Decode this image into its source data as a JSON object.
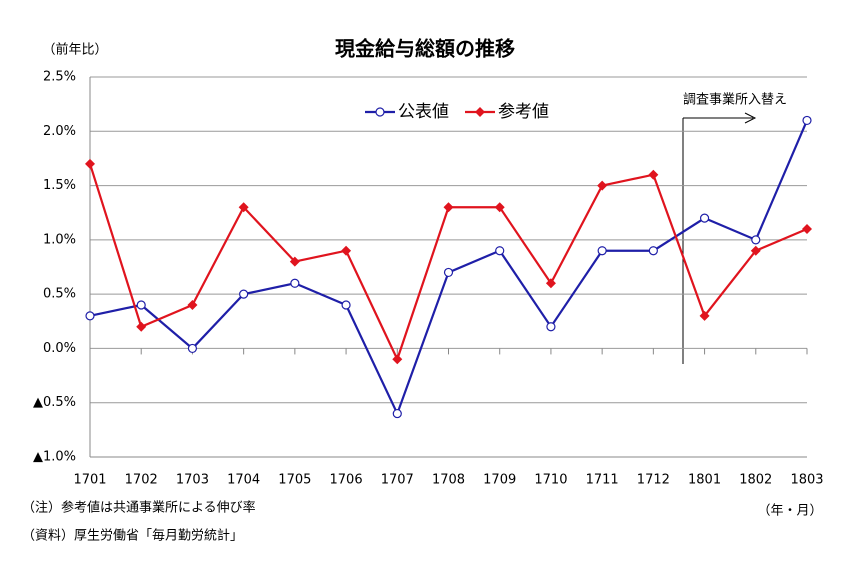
{
  "chart_data": {
    "type": "line",
    "title": "現金給与総額の推移",
    "y_label": "（前年比）",
    "x_label": "（年・月）",
    "notes": [
      "（注）参考値は共通事業所による伸び率",
      "（資料）厚生労働省「毎月勤労統計」"
    ],
    "annotation": "調査事業所入替え",
    "categories": [
      "1701",
      "1702",
      "1703",
      "1704",
      "1705",
      "1706",
      "1707",
      "1708",
      "1709",
      "1710",
      "1711",
      "1712",
      "1801",
      "1802",
      "1803"
    ],
    "series": [
      {
        "name": "公表値",
        "color": "#1f1fa8",
        "marker": "circle",
        "values": [
          0.3,
          0.4,
          0.0,
          0.5,
          0.6,
          0.4,
          -0.6,
          0.7,
          0.9,
          0.2,
          0.9,
          0.9,
          1.2,
          1.0,
          2.1
        ]
      },
      {
        "name": "参考値",
        "color": "#e0141e",
        "marker": "diamond",
        "values": [
          1.7,
          0.2,
          0.4,
          1.3,
          0.8,
          0.9,
          -0.1,
          1.3,
          1.3,
          0.6,
          1.5,
          1.6,
          0.3,
          0.9,
          1.1
        ]
      }
    ],
    "ylim": [
      -1.0,
      2.5
    ],
    "yticks": [
      {
        "value": -1.0,
        "label": "▲1.0%"
      },
      {
        "value": -0.5,
        "label": "▲0.5%"
      },
      {
        "value": 0.0,
        "label": "0.0%"
      },
      {
        "value": 0.5,
        "label": "0.5%"
      },
      {
        "value": 1.0,
        "label": "1.0%"
      },
      {
        "value": 1.5,
        "label": "1.5%"
      },
      {
        "value": 2.0,
        "label": "2.0%"
      },
      {
        "value": 2.5,
        "label": "2.5%"
      }
    ],
    "grid": true,
    "legend": "top"
  }
}
